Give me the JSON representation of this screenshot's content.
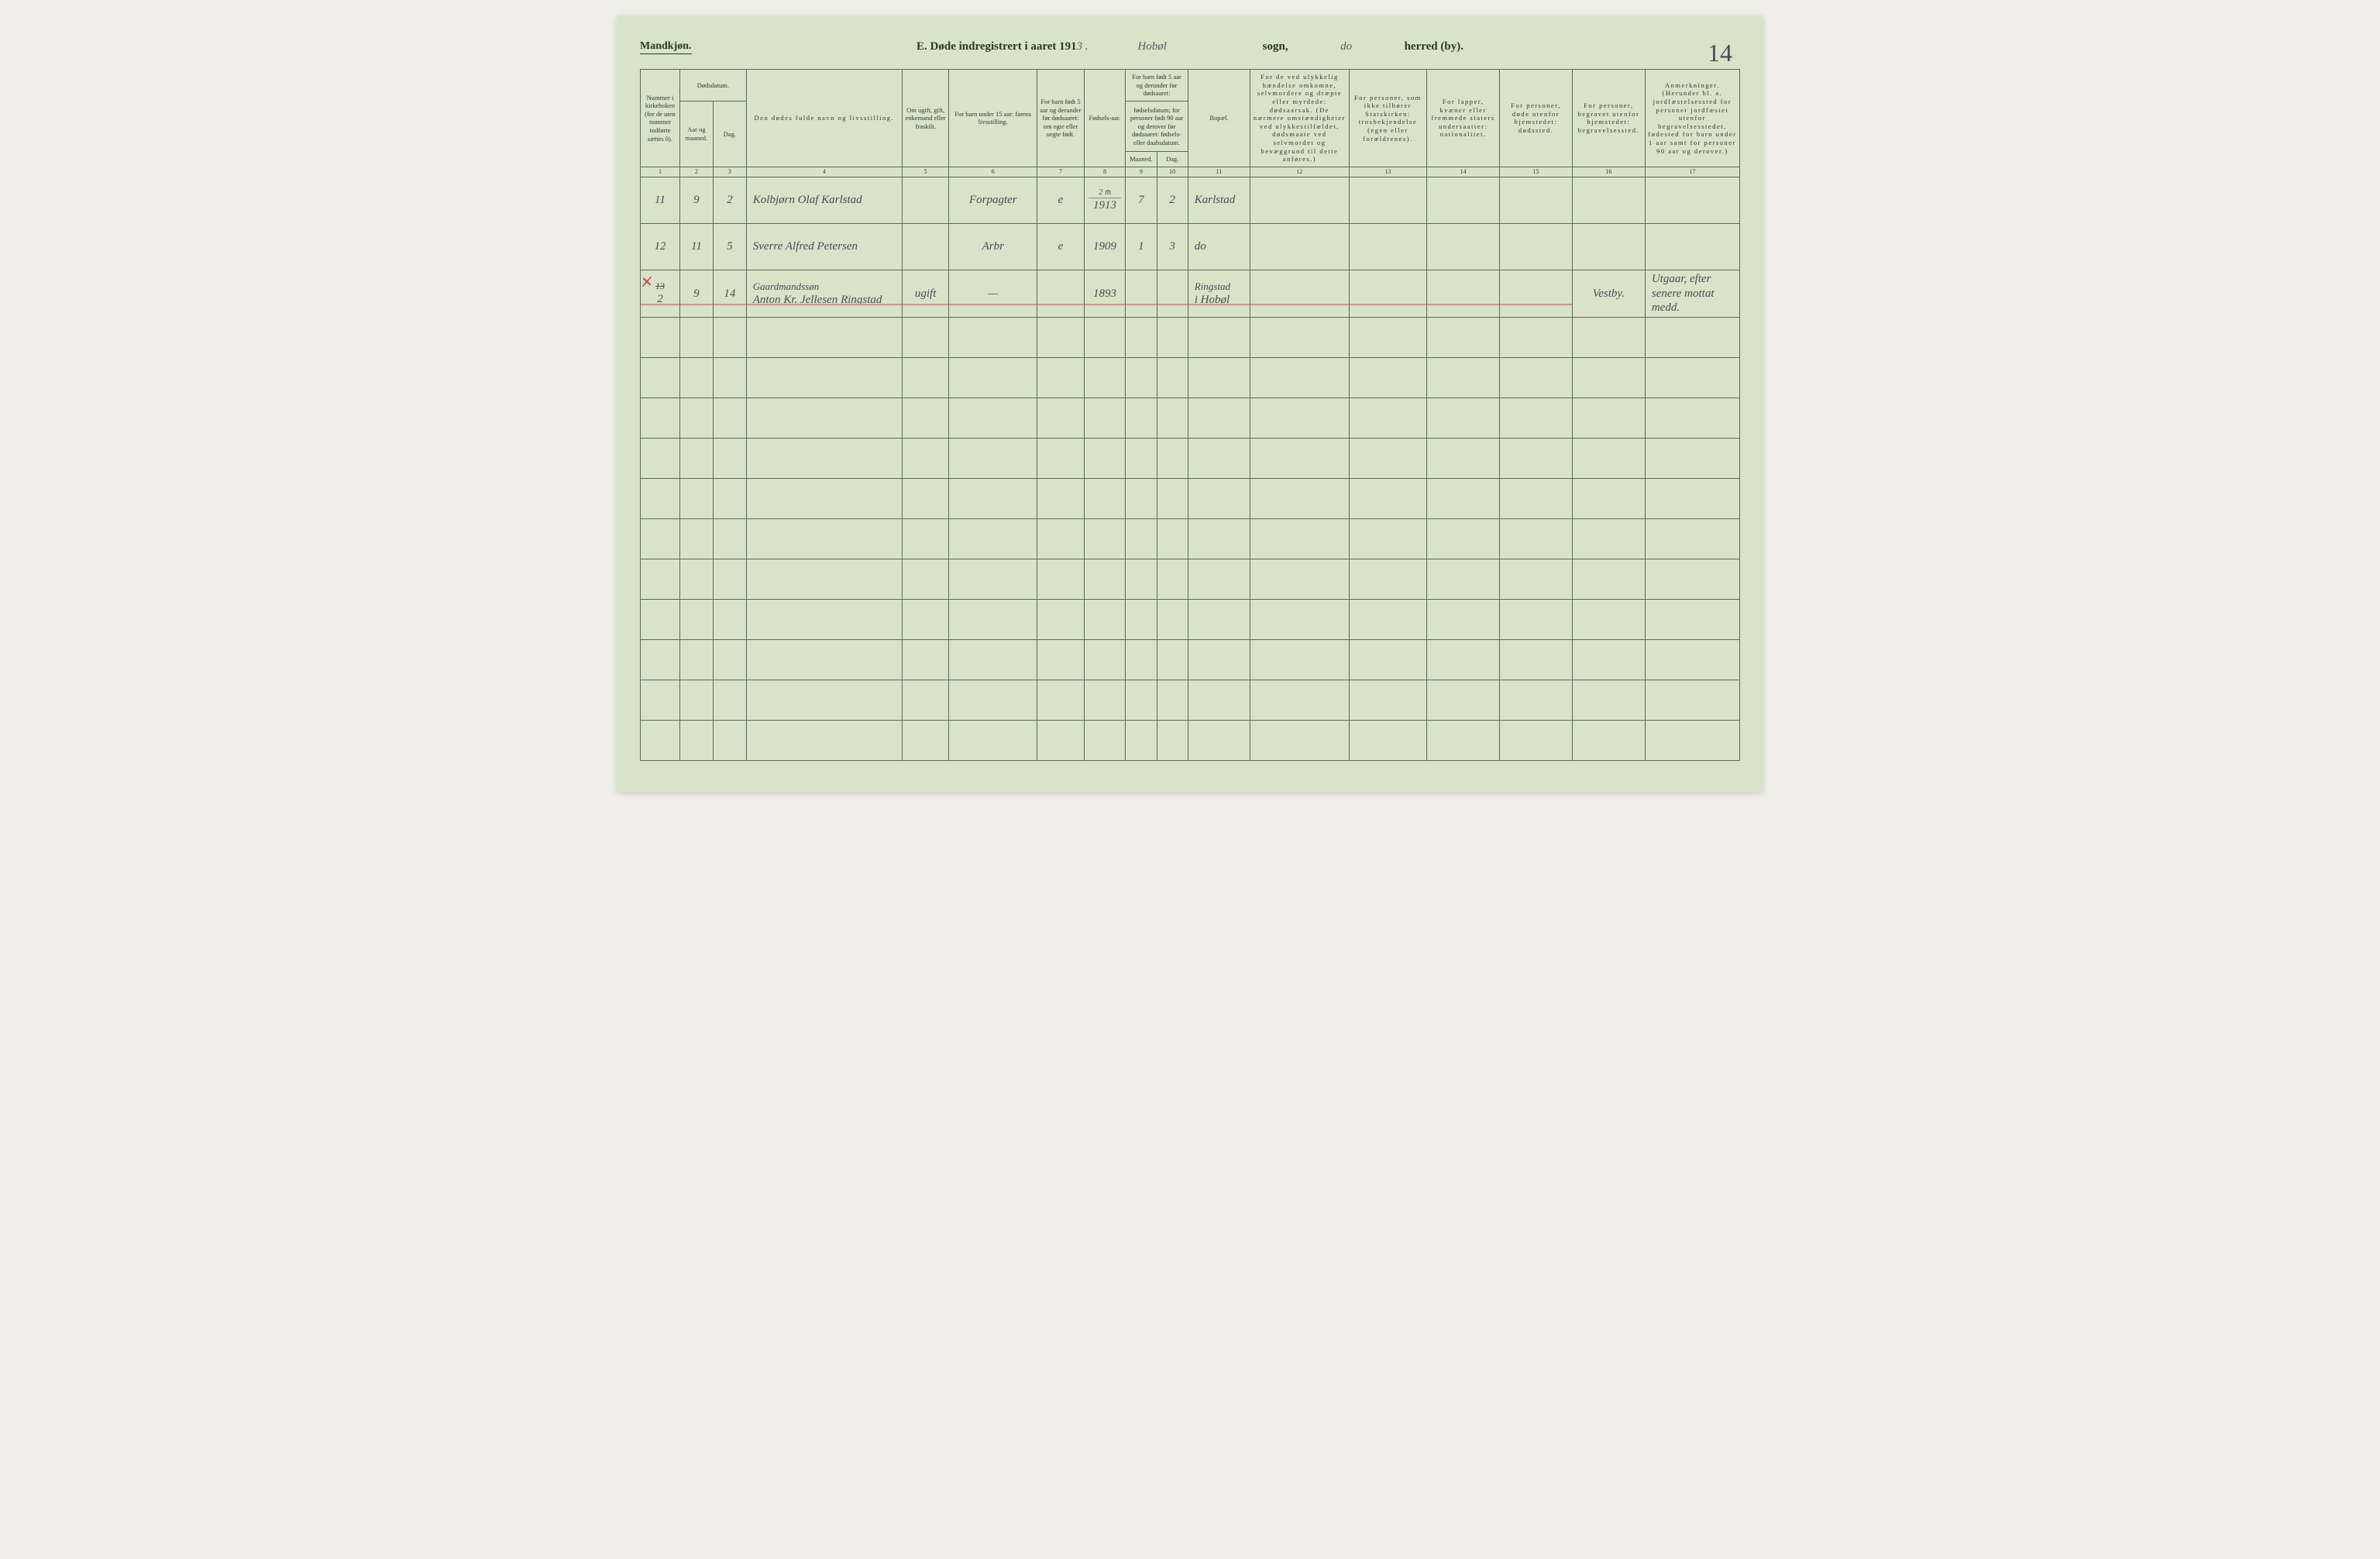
{
  "page": {
    "background_color": "#d8e4c8",
    "grid_color": "#5a6a5a",
    "text_color": "#2a3a2a",
    "handwriting_color": "#4a4a5a",
    "strike_color": "#e08a8a"
  },
  "header": {
    "gender": "Mandkjøn.",
    "title_prefix": "E.   Døde indregistrert i aaret 191",
    "year_suffix": "3 .",
    "sogn_hw": "Hobøl",
    "sogn_label": "sogn,",
    "herred_hw": "do",
    "herred_label": "herred (by).",
    "page_number": "14"
  },
  "columns": {
    "widths_pct": [
      3.8,
      3.2,
      3.2,
      15,
      4.5,
      8.5,
      4.5,
      4,
      3,
      3,
      6,
      9.5,
      7.5,
      7,
      7,
      7,
      9.1
    ],
    "group_dodsdatum": "Dødsdatum.",
    "group_barn5": "For barn født 5 aar og derunder før dødsaaret:",
    "c1": "Nummer i kirkeboken (for de uten nummer indførte sættes 0).",
    "c2": "Aar og maaned.",
    "c3": "Dag.",
    "c4": "Den dødes fulde navn og livsstilling.",
    "c5": "Om ugift, gift, enkemand eller fraskilt.",
    "c6": "For barn under 15 aar: farens livsstilling.",
    "c7": "For barn født 5 aar og derunder før dødsaaret: om egte eller uegte født.",
    "c8": "Fødsels-aar.",
    "c9": "Maaned.",
    "c10": "Dag.",
    "c10b": "fødselsdatum; for personer født 90 aar og derover før dødsaaret: fødsels- eller daabsdatum.",
    "c11": "Bopæl.",
    "c12": "For de ved ulykkelig hændelse omkomne, selvmordere og dræpte eller myrdede: dødsaarsak. (De nærmere omstændigheter ved ulykkestilfældet, dødsmaate ved selvmordet og bevæggrund til dette anføres.)",
    "c13": "For personer, som ikke tilhører Statskirken: trosbekjendelse (egen eller forældrenes).",
    "c14": "For lapper, kvæner eller fremmede staters undersaatter: nationalitet.",
    "c15": "For personer, døde utenfor hjemstedet: dødssted.",
    "c16": "For personer, begravet utenfor hjemstedet: begravelsessted.",
    "c17": "Anmerkninger. (Herunder bl. a. jordfæstelsessted for personer jordfæstet utenfor begravelsesstedet, fødested for barn under 1 aar samt for personer 90 aar og derover.)",
    "numbers": [
      "1",
      "2",
      "3",
      "4",
      "5",
      "6",
      "7",
      "8",
      "9",
      "10",
      "11",
      "12",
      "13",
      "14",
      "15",
      "16",
      "17"
    ]
  },
  "rows": [
    {
      "no": "11",
      "aar": "9",
      "dag": "2",
      "navn": "Kolbjørn Olaf Karlstad",
      "stand": "",
      "faren": "Forpagter",
      "egte": "e",
      "faar": "1913",
      "fm_over": "2 m̄",
      "fm": "7",
      "fd": "2",
      "bopael": "Karlstad",
      "c12": "",
      "c13": "",
      "c14": "",
      "c15": "",
      "c16": "",
      "c17": ""
    },
    {
      "no": "12",
      "aar": "11",
      "dag": "5",
      "navn": "Sverre Alfred Petersen",
      "stand": "",
      "faren": "Arbr",
      "egte": "e",
      "faar": "1909",
      "fm": "1",
      "fd": "3",
      "bopael": "do",
      "c12": "",
      "c13": "",
      "c14": "",
      "c15": "",
      "c16": "",
      "c17": ""
    },
    {
      "struck": true,
      "no_over": "13",
      "no": "2",
      "aar": "9",
      "dag": "14",
      "navn_over": "Gaardmandssøn",
      "navn": "Anton Kr. Jellesen Ringstad",
      "stand": "ugift",
      "faren": "—",
      "egte": "",
      "faar": "1893",
      "fm": "",
      "fd": "",
      "bopael_over": "Ringstad",
      "bopael": "i Hobøl",
      "c12": "",
      "c13": "",
      "c14": "",
      "c15": "",
      "c16": "Vestby.",
      "c17": "Utgaar, efter senere mottat medd."
    }
  ],
  "empty_row_count": 11
}
